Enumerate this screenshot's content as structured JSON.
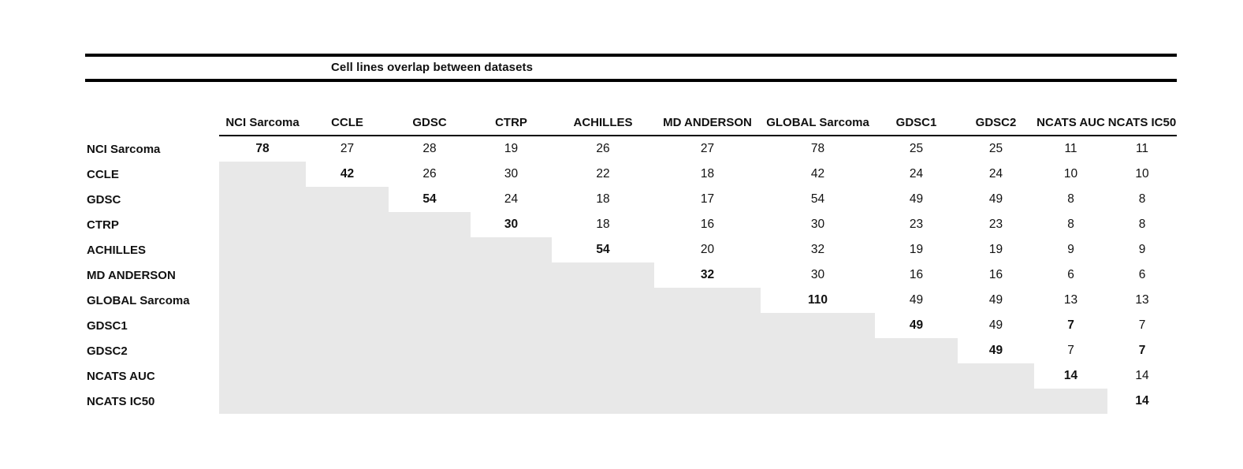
{
  "title": "Cell lines overlap between datasets",
  "columns": [
    "NCI Sarcoma",
    "CCLE",
    "GDSC",
    "CTRP",
    "ACHILLES",
    "MD ANDERSON",
    "GLOBAL Sarcoma",
    "GDSC1",
    "GDSC2",
    "NCATS AUC",
    "NCATS IC50"
  ],
  "rows": [
    {
      "label": "NCI Sarcoma",
      "cells": [
        {
          "text": "78",
          "bold": true,
          "shaded": false
        },
        {
          "text": "27",
          "bold": false,
          "shaded": false
        },
        {
          "text": "28",
          "bold": false,
          "shaded": false
        },
        {
          "text": "19",
          "bold": false,
          "shaded": false
        },
        {
          "text": "26",
          "bold": false,
          "shaded": false
        },
        {
          "text": "27",
          "bold": false,
          "shaded": false
        },
        {
          "text": "78",
          "bold": false,
          "shaded": false
        },
        {
          "text": "25",
          "bold": false,
          "shaded": false
        },
        {
          "text": "25",
          "bold": false,
          "shaded": false
        },
        {
          "text": "11",
          "bold": false,
          "shaded": false
        },
        {
          "text": "11",
          "bold": false,
          "shaded": false
        }
      ]
    },
    {
      "label": "CCLE",
      "cells": [
        {
          "text": "",
          "bold": false,
          "shaded": true
        },
        {
          "text": "42",
          "bold": true,
          "shaded": false
        },
        {
          "text": "26",
          "bold": false,
          "shaded": false
        },
        {
          "text": "30",
          "bold": false,
          "shaded": false
        },
        {
          "text": "22",
          "bold": false,
          "shaded": false
        },
        {
          "text": "18",
          "bold": false,
          "shaded": false
        },
        {
          "text": "42",
          "bold": false,
          "shaded": false
        },
        {
          "text": "24",
          "bold": false,
          "shaded": false
        },
        {
          "text": "24",
          "bold": false,
          "shaded": false
        },
        {
          "text": "10",
          "bold": false,
          "shaded": false
        },
        {
          "text": "10",
          "bold": false,
          "shaded": false
        }
      ]
    },
    {
      "label": "GDSC",
      "cells": [
        {
          "text": "",
          "bold": false,
          "shaded": true
        },
        {
          "text": "",
          "bold": false,
          "shaded": true
        },
        {
          "text": "54",
          "bold": true,
          "shaded": false
        },
        {
          "text": "24",
          "bold": false,
          "shaded": false
        },
        {
          "text": "18",
          "bold": false,
          "shaded": false
        },
        {
          "text": "17",
          "bold": false,
          "shaded": false
        },
        {
          "text": "54",
          "bold": false,
          "shaded": false
        },
        {
          "text": "49",
          "bold": false,
          "shaded": false
        },
        {
          "text": "49",
          "bold": false,
          "shaded": false
        },
        {
          "text": "8",
          "bold": false,
          "shaded": false
        },
        {
          "text": "8",
          "bold": false,
          "shaded": false
        }
      ]
    },
    {
      "label": "CTRP",
      "cells": [
        {
          "text": "",
          "bold": false,
          "shaded": true
        },
        {
          "text": "",
          "bold": false,
          "shaded": true
        },
        {
          "text": "",
          "bold": false,
          "shaded": true
        },
        {
          "text": "30",
          "bold": true,
          "shaded": false
        },
        {
          "text": "18",
          "bold": false,
          "shaded": false
        },
        {
          "text": "16",
          "bold": false,
          "shaded": false
        },
        {
          "text": "30",
          "bold": false,
          "shaded": false
        },
        {
          "text": "23",
          "bold": false,
          "shaded": false
        },
        {
          "text": "23",
          "bold": false,
          "shaded": false
        },
        {
          "text": "8",
          "bold": false,
          "shaded": false
        },
        {
          "text": "8",
          "bold": false,
          "shaded": false
        }
      ]
    },
    {
      "label": "ACHILLES",
      "cells": [
        {
          "text": "",
          "bold": false,
          "shaded": true
        },
        {
          "text": "",
          "bold": false,
          "shaded": true
        },
        {
          "text": "",
          "bold": false,
          "shaded": true
        },
        {
          "text": "",
          "bold": false,
          "shaded": true
        },
        {
          "text": "54",
          "bold": true,
          "shaded": false
        },
        {
          "text": "20",
          "bold": false,
          "shaded": false
        },
        {
          "text": "32",
          "bold": false,
          "shaded": false
        },
        {
          "text": "19",
          "bold": false,
          "shaded": false
        },
        {
          "text": "19",
          "bold": false,
          "shaded": false
        },
        {
          "text": "9",
          "bold": false,
          "shaded": false
        },
        {
          "text": "9",
          "bold": false,
          "shaded": false
        }
      ]
    },
    {
      "label": "MD ANDERSON",
      "cells": [
        {
          "text": "",
          "bold": false,
          "shaded": true
        },
        {
          "text": "",
          "bold": false,
          "shaded": true
        },
        {
          "text": "",
          "bold": false,
          "shaded": true
        },
        {
          "text": "",
          "bold": false,
          "shaded": true
        },
        {
          "text": "",
          "bold": false,
          "shaded": true
        },
        {
          "text": "32",
          "bold": true,
          "shaded": false
        },
        {
          "text": "30",
          "bold": false,
          "shaded": false
        },
        {
          "text": "16",
          "bold": false,
          "shaded": false
        },
        {
          "text": "16",
          "bold": false,
          "shaded": false
        },
        {
          "text": "6",
          "bold": false,
          "shaded": false
        },
        {
          "text": "6",
          "bold": false,
          "shaded": false
        }
      ]
    },
    {
      "label": "GLOBAL Sarcoma",
      "cells": [
        {
          "text": "",
          "bold": false,
          "shaded": true
        },
        {
          "text": "",
          "bold": false,
          "shaded": true
        },
        {
          "text": "",
          "bold": false,
          "shaded": true
        },
        {
          "text": "",
          "bold": false,
          "shaded": true
        },
        {
          "text": "",
          "bold": false,
          "shaded": true
        },
        {
          "text": "",
          "bold": false,
          "shaded": true
        },
        {
          "text": "110",
          "bold": true,
          "shaded": false
        },
        {
          "text": "49",
          "bold": false,
          "shaded": false
        },
        {
          "text": "49",
          "bold": false,
          "shaded": false
        },
        {
          "text": "13",
          "bold": false,
          "shaded": false
        },
        {
          "text": "13",
          "bold": false,
          "shaded": false
        }
      ]
    },
    {
      "label": "GDSC1",
      "cells": [
        {
          "text": "",
          "bold": false,
          "shaded": true
        },
        {
          "text": "",
          "bold": false,
          "shaded": true
        },
        {
          "text": "",
          "bold": false,
          "shaded": true
        },
        {
          "text": "",
          "bold": false,
          "shaded": true
        },
        {
          "text": "",
          "bold": false,
          "shaded": true
        },
        {
          "text": "",
          "bold": false,
          "shaded": true
        },
        {
          "text": "",
          "bold": false,
          "shaded": true
        },
        {
          "text": "49",
          "bold": true,
          "shaded": false
        },
        {
          "text": "49",
          "bold": false,
          "shaded": false
        },
        {
          "text": "7",
          "bold": true,
          "shaded": false
        },
        {
          "text": "7",
          "bold": false,
          "shaded": false
        }
      ]
    },
    {
      "label": "GDSC2",
      "cells": [
        {
          "text": "",
          "bold": false,
          "shaded": true
        },
        {
          "text": "",
          "bold": false,
          "shaded": true
        },
        {
          "text": "",
          "bold": false,
          "shaded": true
        },
        {
          "text": "",
          "bold": false,
          "shaded": true
        },
        {
          "text": "",
          "bold": false,
          "shaded": true
        },
        {
          "text": "",
          "bold": false,
          "shaded": true
        },
        {
          "text": "",
          "bold": false,
          "shaded": true
        },
        {
          "text": "",
          "bold": false,
          "shaded": true
        },
        {
          "text": "49",
          "bold": true,
          "shaded": false
        },
        {
          "text": "7",
          "bold": false,
          "shaded": false
        },
        {
          "text": "7",
          "bold": true,
          "shaded": false
        }
      ]
    },
    {
      "label": "NCATS AUC",
      "cells": [
        {
          "text": "",
          "bold": false,
          "shaded": true
        },
        {
          "text": "",
          "bold": false,
          "shaded": true
        },
        {
          "text": "",
          "bold": false,
          "shaded": true
        },
        {
          "text": "",
          "bold": false,
          "shaded": true
        },
        {
          "text": "",
          "bold": false,
          "shaded": true
        },
        {
          "text": "",
          "bold": false,
          "shaded": true
        },
        {
          "text": "",
          "bold": false,
          "shaded": true
        },
        {
          "text": "",
          "bold": false,
          "shaded": true
        },
        {
          "text": "",
          "bold": false,
          "shaded": true
        },
        {
          "text": "14",
          "bold": true,
          "shaded": false
        },
        {
          "text": "14",
          "bold": false,
          "shaded": false
        }
      ]
    },
    {
      "label": "NCATS IC50",
      "cells": [
        {
          "text": "",
          "bold": false,
          "shaded": true
        },
        {
          "text": "",
          "bold": false,
          "shaded": true
        },
        {
          "text": "",
          "bold": false,
          "shaded": true
        },
        {
          "text": "",
          "bold": false,
          "shaded": true
        },
        {
          "text": "",
          "bold": false,
          "shaded": true
        },
        {
          "text": "",
          "bold": false,
          "shaded": true
        },
        {
          "text": "",
          "bold": false,
          "shaded": true
        },
        {
          "text": "",
          "bold": false,
          "shaded": true
        },
        {
          "text": "",
          "bold": false,
          "shaded": true
        },
        {
          "text": "",
          "bold": false,
          "shaded": true
        },
        {
          "text": "14",
          "bold": true,
          "shaded": false
        }
      ]
    }
  ],
  "colors": {
    "shaded_cell": "#e8e8e8",
    "rule": "#000000",
    "text": "#111111"
  },
  "chart_data": {
    "type": "table",
    "title": "Cell lines overlap between datasets",
    "columns": [
      "NCI Sarcoma",
      "CCLE",
      "GDSC",
      "CTRP",
      "ACHILLES",
      "MD ANDERSON",
      "GLOBAL Sarcoma",
      "GDSC1",
      "GDSC2",
      "NCATS AUC",
      "NCATS IC50"
    ],
    "row_labels": [
      "NCI Sarcoma",
      "CCLE",
      "GDSC",
      "CTRP",
      "ACHILLES",
      "MD ANDERSON",
      "GLOBAL Sarcoma",
      "GDSC1",
      "GDSC2",
      "NCATS AUC",
      "NCATS IC50"
    ],
    "matrix": [
      [
        78,
        27,
        28,
        19,
        26,
        27,
        78,
        25,
        25,
        11,
        11
      ],
      [
        null,
        42,
        26,
        30,
        22,
        18,
        42,
        24,
        24,
        10,
        10
      ],
      [
        null,
        null,
        54,
        24,
        18,
        17,
        54,
        49,
        49,
        8,
        8
      ],
      [
        null,
        null,
        null,
        30,
        18,
        16,
        30,
        23,
        23,
        8,
        8
      ],
      [
        null,
        null,
        null,
        null,
        54,
        20,
        32,
        19,
        19,
        9,
        9
      ],
      [
        null,
        null,
        null,
        null,
        null,
        32,
        30,
        16,
        16,
        6,
        6
      ],
      [
        null,
        null,
        null,
        null,
        null,
        null,
        110,
        49,
        49,
        13,
        13
      ],
      [
        null,
        null,
        null,
        null,
        null,
        null,
        null,
        49,
        49,
        7,
        7
      ],
      [
        null,
        null,
        null,
        null,
        null,
        null,
        null,
        null,
        49,
        7,
        7
      ],
      [
        null,
        null,
        null,
        null,
        null,
        null,
        null,
        null,
        null,
        14,
        14
      ],
      [
        null,
        null,
        null,
        null,
        null,
        null,
        null,
        null,
        null,
        null,
        14
      ]
    ],
    "layout": {
      "lower_triangle": "shaded gray, no values",
      "diagonal": "bold values",
      "grid": false,
      "legend": false
    }
  }
}
